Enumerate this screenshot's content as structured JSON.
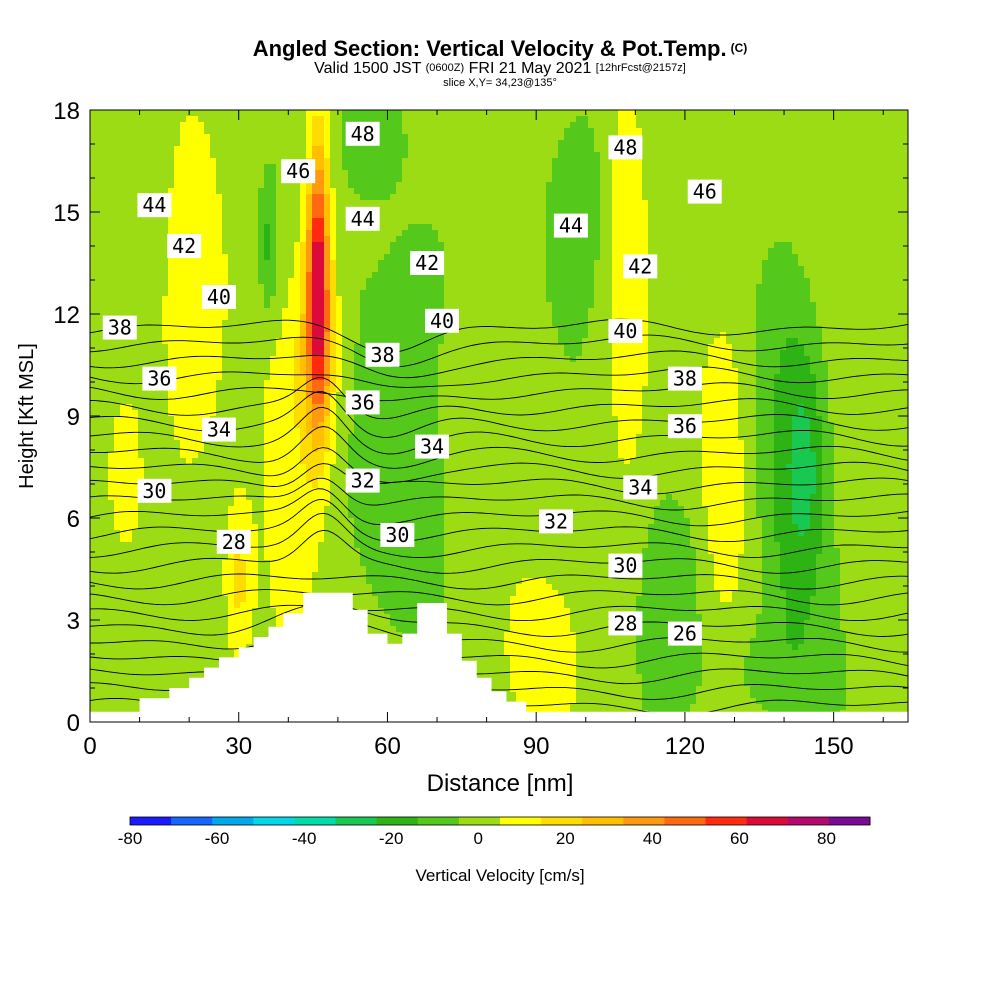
{
  "title": {
    "main": "Angled Section: Vertical Velocity & Pot.Temp.",
    "main_suffix": "(C)",
    "valid_a": "Valid 1500 JST",
    "valid_b": "(0600Z)",
    "valid_c": "FRI 21 May 2021",
    "valid_d": "[12hrFcst@2157z]",
    "slice": "slice X,Y= 34,23@135°"
  },
  "chart_data": {
    "type": "heatmap",
    "xlabel": "Distance [nm]",
    "ylabel": "Height [Kft MSL]",
    "xlim": [
      0,
      165
    ],
    "ylim": [
      0,
      18
    ],
    "x_ticks": [
      0,
      30,
      60,
      90,
      120,
      150
    ],
    "y_ticks": [
      0,
      3,
      6,
      9,
      12,
      15,
      18
    ],
    "colorbar": {
      "label": "Vertical Velocity [cm/s]",
      "tick_values": [
        -80,
        -60,
        -40,
        -20,
        0,
        20,
        40,
        60,
        80
      ],
      "tick_labels": [
        "-80",
        "-60",
        "-40",
        "-20",
        "0",
        "20",
        "40",
        "60",
        "80"
      ],
      "bins": [
        -80,
        -70,
        -60,
        -50,
        -40,
        -30,
        -20,
        -10,
        0,
        10,
        20,
        30,
        40,
        50,
        60,
        70,
        80,
        90
      ],
      "colors": [
        "#1a1aff",
        "#1565ff",
        "#00a8ee",
        "#00d8e8",
        "#00dcaa",
        "#18c850",
        "#2db414",
        "#55c81c",
        "#9bdc14",
        "#ffff00",
        "#ffdc00",
        "#ffbe00",
        "#ff9a10",
        "#ff6a10",
        "#ff2a10",
        "#dc0a3a",
        "#b40a6e",
        "#780a96"
      ]
    },
    "terrain_kft": [
      [
        0,
        0.3
      ],
      [
        10,
        0.3
      ],
      [
        10,
        0.7
      ],
      [
        16,
        0.7
      ],
      [
        16,
        1.0
      ],
      [
        20,
        1.0
      ],
      [
        20,
        1.3
      ],
      [
        23,
        1.3
      ],
      [
        23,
        1.6
      ],
      [
        26,
        1.6
      ],
      [
        26,
        1.9
      ],
      [
        30,
        1.9
      ],
      [
        30,
        2.2
      ],
      [
        33,
        2.2
      ],
      [
        33,
        2.5
      ],
      [
        36,
        2.5
      ],
      [
        36,
        2.8
      ],
      [
        39,
        2.8
      ],
      [
        39,
        3.2
      ],
      [
        43,
        3.2
      ],
      [
        43,
        3.8
      ],
      [
        53,
        3.8
      ],
      [
        53,
        3.3
      ],
      [
        56,
        3.3
      ],
      [
        56,
        2.6
      ],
      [
        60,
        2.6
      ],
      [
        60,
        2.3
      ],
      [
        63,
        2.3
      ],
      [
        63,
        2.6
      ],
      [
        66,
        2.6
      ],
      [
        66,
        3.5
      ],
      [
        72,
        3.5
      ],
      [
        72,
        2.6
      ],
      [
        75,
        2.6
      ],
      [
        75,
        1.8
      ],
      [
        78,
        1.8
      ],
      [
        78,
        1.3
      ],
      [
        81,
        1.3
      ],
      [
        81,
        0.9
      ],
      [
        84,
        0.9
      ],
      [
        84,
        0.6
      ],
      [
        88,
        0.6
      ],
      [
        88,
        0.3
      ],
      [
        165,
        0.3
      ]
    ],
    "theta_contours_c": [
      25,
      26,
      27,
      28,
      29,
      30,
      31,
      32,
      33,
      34,
      35,
      36,
      37,
      38,
      39,
      40,
      41,
      42,
      43,
      44,
      45,
      46,
      47,
      48,
      49
    ],
    "theta_labels": [
      {
        "text": "48",
        "x": 55,
        "y": 17.3
      },
      {
        "text": "48",
        "x": 108,
        "y": 16.9
      },
      {
        "text": "46",
        "x": 42,
        "y": 16.2
      },
      {
        "text": "46",
        "x": 124,
        "y": 15.6
      },
      {
        "text": "44",
        "x": 13,
        "y": 15.2
      },
      {
        "text": "44",
        "x": 55,
        "y": 14.8
      },
      {
        "text": "44",
        "x": 97,
        "y": 14.6
      },
      {
        "text": "42",
        "x": 19,
        "y": 14.0
      },
      {
        "text": "42",
        "x": 68,
        "y": 13.5
      },
      {
        "text": "42",
        "x": 111,
        "y": 13.4
      },
      {
        "text": "40",
        "x": 26,
        "y": 12.5
      },
      {
        "text": "40",
        "x": 71,
        "y": 11.8
      },
      {
        "text": "40",
        "x": 108,
        "y": 11.5
      },
      {
        "text": "38",
        "x": 6,
        "y": 11.6
      },
      {
        "text": "38",
        "x": 59,
        "y": 10.8
      },
      {
        "text": "38",
        "x": 120,
        "y": 10.1
      },
      {
        "text": "36",
        "x": 14,
        "y": 10.1
      },
      {
        "text": "36",
        "x": 55,
        "y": 9.4
      },
      {
        "text": "36",
        "x": 120,
        "y": 8.7
      },
      {
        "text": "34",
        "x": 26,
        "y": 8.6
      },
      {
        "text": "34",
        "x": 69,
        "y": 8.1
      },
      {
        "text": "34",
        "x": 111,
        "y": 6.9
      },
      {
        "text": "32",
        "x": 55,
        "y": 7.1
      },
      {
        "text": "32",
        "x": 94,
        "y": 5.9
      },
      {
        "text": "30",
        "x": 13,
        "y": 6.8
      },
      {
        "text": "30",
        "x": 62,
        "y": 5.5
      },
      {
        "text": "30",
        "x": 108,
        "y": 4.6
      },
      {
        "text": "28",
        "x": 29,
        "y": 5.3
      },
      {
        "text": "28",
        "x": 108,
        "y": 2.9
      },
      {
        "text": "26",
        "x": 120,
        "y": 2.6
      }
    ]
  }
}
